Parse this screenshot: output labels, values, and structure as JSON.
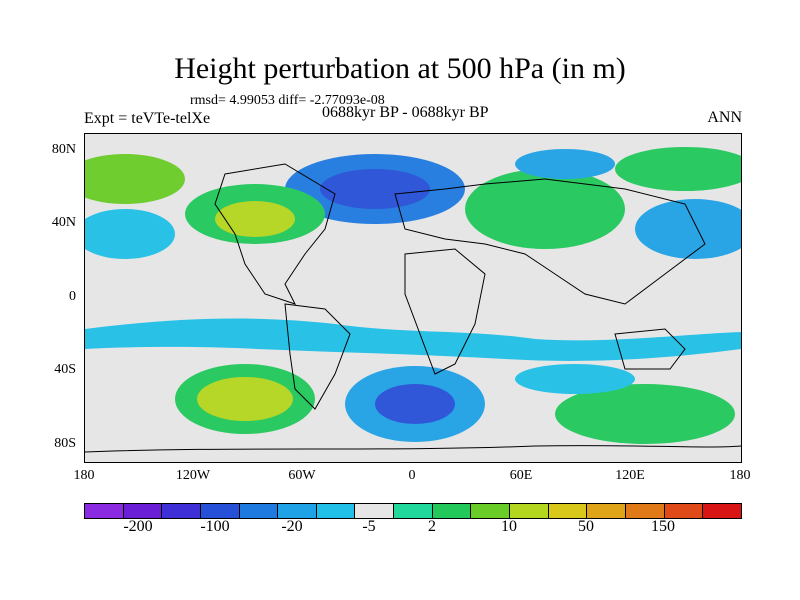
{
  "title": "Height perturbation at 500 hPa (in m)",
  "stats": "rmsd= 4.99053 diff= -2.77093e-08",
  "expt": "Expt = teVTe-telXe",
  "period": "0688kyr BP - 0688kyr BP",
  "season": "ANN",
  "lat_ticks": [
    "80N",
    "40N",
    "0",
    "40S",
    "80S"
  ],
  "lon_ticks": [
    "180",
    "120W",
    "60W",
    "0",
    "60E",
    "120E",
    "180"
  ],
  "colorbar": {
    "colors": [
      "#8a2be2",
      "#6a1fd6",
      "#3f2fd6",
      "#2650d8",
      "#1f7ae0",
      "#1fa2e6",
      "#20c0e8",
      "#e6e6e6",
      "#20d89c",
      "#22c85a",
      "#6acc26",
      "#b4d61e",
      "#d8c81a",
      "#e0a418",
      "#e07a18",
      "#e04a18",
      "#d81414"
    ],
    "labels": [
      "-200",
      "-100",
      "-20",
      "-5",
      "2",
      "10",
      "50",
      "150"
    ]
  }
}
